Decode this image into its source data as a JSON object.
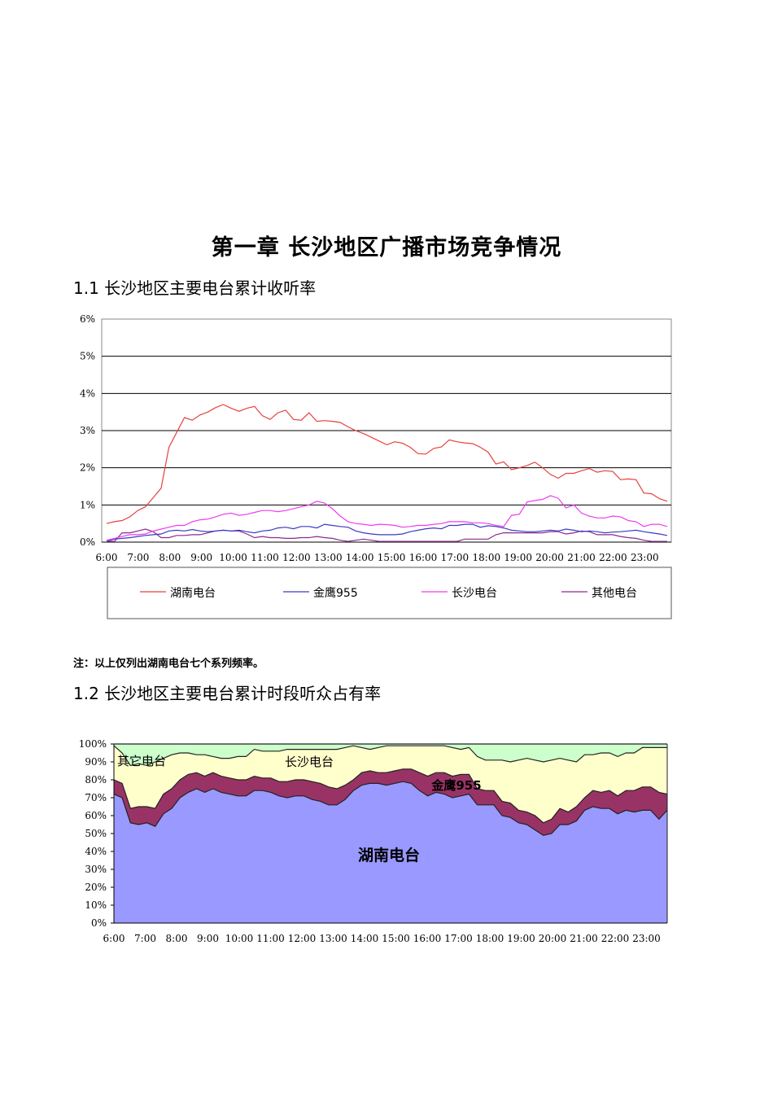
{
  "chapter_title": "第一章 长沙地区广播市场竞争情况",
  "section1_heading": "1.1 长沙地区主要电台累计收听率",
  "section2_heading": "1.2 长沙地区主要电台累计时段听众占有率",
  "note": "注：以上仅列出湖南电台七个系列频率。",
  "chart_data": [
    {
      "type": "line",
      "x_tick_labels": [
        "6:00",
        "7:00",
        "8:00",
        "9:00",
        "10:00",
        "11:00",
        "12:00",
        "13:00",
        "14:00",
        "15:00",
        "16:00",
        "17:00",
        "18:00",
        "19:00",
        "20:00",
        "21:00",
        "22:00",
        "23:00"
      ],
      "y_tick_labels": [
        "0%",
        "1%",
        "2%",
        "3%",
        "4%",
        "5%",
        "6%"
      ],
      "ylim": [
        0,
        6
      ],
      "grid": true,
      "legend_position": "bottom",
      "series": [
        {
          "name": "湖南电台",
          "color": "#e8413c",
          "values": [
            0.5,
            0.55,
            0.58,
            0.68,
            0.85,
            0.95,
            1.2,
            1.45,
            2.55,
            2.95,
            3.35,
            3.28,
            3.42,
            3.5,
            3.62,
            3.7,
            3.6,
            3.52,
            3.6,
            3.65,
            3.4,
            3.3,
            3.48,
            3.55,
            3.3,
            3.28,
            3.48,
            3.25,
            3.27,
            3.25,
            3.22,
            3.1,
            3.0,
            2.92,
            2.82,
            2.72,
            2.62,
            2.7,
            2.66,
            2.55,
            2.38,
            2.37,
            2.52,
            2.56,
            2.75,
            2.7,
            2.67,
            2.65,
            2.55,
            2.42,
            2.1,
            2.16,
            1.95,
            2.0,
            2.06,
            2.15,
            2.0,
            1.82,
            1.72,
            1.85,
            1.85,
            1.92,
            1.98,
            1.88,
            1.92,
            1.9,
            1.68,
            1.7,
            1.68,
            1.32,
            1.3,
            1.17,
            1.1
          ]
        },
        {
          "name": "金鹰955",
          "color": "#3a3ac6",
          "values": [
            0.02,
            0.08,
            0.1,
            0.12,
            0.15,
            0.18,
            0.2,
            0.22,
            0.3,
            0.32,
            0.3,
            0.34,
            0.3,
            0.28,
            0.3,
            0.32,
            0.3,
            0.32,
            0.28,
            0.25,
            0.3,
            0.32,
            0.38,
            0.4,
            0.36,
            0.42,
            0.42,
            0.38,
            0.48,
            0.45,
            0.42,
            0.4,
            0.3,
            0.25,
            0.22,
            0.2,
            0.2,
            0.2,
            0.22,
            0.28,
            0.32,
            0.36,
            0.38,
            0.36,
            0.45,
            0.45,
            0.48,
            0.48,
            0.4,
            0.44,
            0.42,
            0.38,
            0.32,
            0.3,
            0.28,
            0.28,
            0.3,
            0.32,
            0.3,
            0.35,
            0.32,
            0.28,
            0.3,
            0.28,
            0.25,
            0.27,
            0.28,
            0.3,
            0.32,
            0.28,
            0.25,
            0.22,
            0.18
          ]
        },
        {
          "name": "长沙电台",
          "color": "#ee3cee",
          "values": [
            0.05,
            0.1,
            0.15,
            0.2,
            0.2,
            0.22,
            0.3,
            0.35,
            0.4,
            0.45,
            0.45,
            0.55,
            0.6,
            0.62,
            0.68,
            0.75,
            0.78,
            0.72,
            0.75,
            0.8,
            0.85,
            0.85,
            0.82,
            0.85,
            0.9,
            0.95,
            1.0,
            1.1,
            1.05,
            0.9,
            0.7,
            0.55,
            0.5,
            0.48,
            0.45,
            0.48,
            0.47,
            0.45,
            0.4,
            0.42,
            0.45,
            0.45,
            0.48,
            0.5,
            0.55,
            0.55,
            0.55,
            0.52,
            0.52,
            0.5,
            0.45,
            0.42,
            0.72,
            0.75,
            1.08,
            1.12,
            1.15,
            1.25,
            1.18,
            0.92,
            1.0,
            0.78,
            0.7,
            0.65,
            0.65,
            0.7,
            0.68,
            0.58,
            0.55,
            0.42,
            0.48,
            0.48,
            0.42
          ]
        },
        {
          "name": "其他电台",
          "color": "#8c2a8c",
          "values": [
            0.02,
            0.02,
            0.25,
            0.25,
            0.3,
            0.35,
            0.28,
            0.12,
            0.12,
            0.18,
            0.18,
            0.2,
            0.2,
            0.25,
            0.3,
            0.32,
            0.3,
            0.3,
            0.22,
            0.12,
            0.15,
            0.12,
            0.12,
            0.1,
            0.1,
            0.12,
            0.12,
            0.15,
            0.12,
            0.1,
            0.05,
            0.02,
            0.05,
            0.08,
            0.05,
            0.02,
            0.02,
            0.02,
            0.02,
            0.02,
            0.02,
            0.02,
            0.02,
            0.02,
            0.02,
            0.02,
            0.08,
            0.08,
            0.08,
            0.08,
            0.2,
            0.25,
            0.25,
            0.25,
            0.25,
            0.25,
            0.25,
            0.28,
            0.28,
            0.22,
            0.25,
            0.3,
            0.28,
            0.2,
            0.2,
            0.2,
            0.15,
            0.12,
            0.1,
            0.05,
            0.02,
            0.02,
            0.02
          ]
        }
      ]
    },
    {
      "type": "area",
      "stacked": true,
      "x_tick_labels": [
        "6:00",
        "7:00",
        "8:00",
        "9:00",
        "10:00",
        "11:00",
        "12:00",
        "13:00",
        "14:00",
        "15:00",
        "16:00",
        "17:00",
        "18:00",
        "19:00",
        "20:00",
        "21:00",
        "22:00",
        "23:00"
      ],
      "y_tick_labels": [
        "0%",
        "10%",
        "20%",
        "30%",
        "40%",
        "50%",
        "60%",
        "70%",
        "80%",
        "90%",
        "100%"
      ],
      "ylim": [
        0,
        100
      ],
      "series": [
        {
          "name": "湖南电台",
          "color": "#9999ff",
          "values": [
            72,
            70,
            56,
            55,
            56,
            54,
            61,
            64,
            70,
            73,
            75,
            73,
            75,
            73,
            72,
            71,
            71,
            74,
            74,
            73,
            71,
            70,
            71,
            71,
            69,
            68,
            66,
            66,
            69,
            74,
            77,
            78,
            78,
            77,
            78,
            79,
            78,
            74,
            71,
            73,
            72,
            70,
            71,
            72,
            66,
            66,
            66,
            60,
            59,
            56,
            55,
            52,
            49,
            50,
            55,
            55,
            57,
            63,
            65,
            64,
            64,
            61,
            63,
            62,
            63,
            63,
            58,
            63
          ]
        },
        {
          "name": "金鹰955",
          "color": "#993366",
          "values": [
            80,
            78,
            64,
            65,
            65,
            64,
            72,
            75,
            80,
            83,
            84,
            82,
            84,
            82,
            81,
            80,
            80,
            82,
            81,
            81,
            79,
            79,
            80,
            80,
            79,
            78,
            76,
            75,
            77,
            80,
            84,
            85,
            84,
            84,
            85,
            86,
            86,
            84,
            82,
            84,
            84,
            82,
            83,
            83,
            75,
            74,
            74,
            68,
            67,
            63,
            62,
            60,
            56,
            58,
            64,
            62,
            65,
            70,
            74,
            73,
            74,
            71,
            74,
            74,
            76,
            76,
            73,
            72
          ]
        },
        {
          "name": "长沙电台",
          "color": "#ffffcc",
          "values": [
            99,
            95,
            88,
            89,
            88,
            90,
            92,
            94,
            95,
            95,
            94,
            94,
            93,
            92,
            92,
            93,
            93,
            97,
            96,
            96,
            96,
            97,
            97,
            97,
            97,
            97,
            97,
            97,
            98,
            99,
            98,
            97,
            98,
            99,
            99,
            99,
            99,
            99,
            99,
            99,
            99,
            98,
            97,
            98,
            93,
            91,
            91,
            91,
            90,
            91,
            92,
            91,
            90,
            91,
            92,
            91,
            90,
            94,
            94,
            95,
            95,
            93,
            95,
            95,
            98,
            98,
            98,
            98
          ]
        },
        {
          "name": "其它电台",
          "color": "#ccffcc",
          "values": [
            100,
            100,
            100,
            100,
            100,
            100,
            100,
            100,
            100,
            100,
            100,
            100,
            100,
            100,
            100,
            100,
            100,
            100,
            100,
            100,
            100,
            100,
            100,
            100,
            100,
            100,
            100,
            100,
            100,
            100,
            100,
            100,
            100,
            100,
            100,
            100,
            100,
            100,
            100,
            100,
            100,
            100,
            100,
            100,
            100,
            100,
            100,
            100,
            100,
            100,
            100,
            100,
            100,
            100,
            100,
            100,
            100,
            100,
            100,
            100,
            100,
            100,
            100,
            100,
            100,
            100,
            100,
            100
          ]
        }
      ]
    }
  ]
}
